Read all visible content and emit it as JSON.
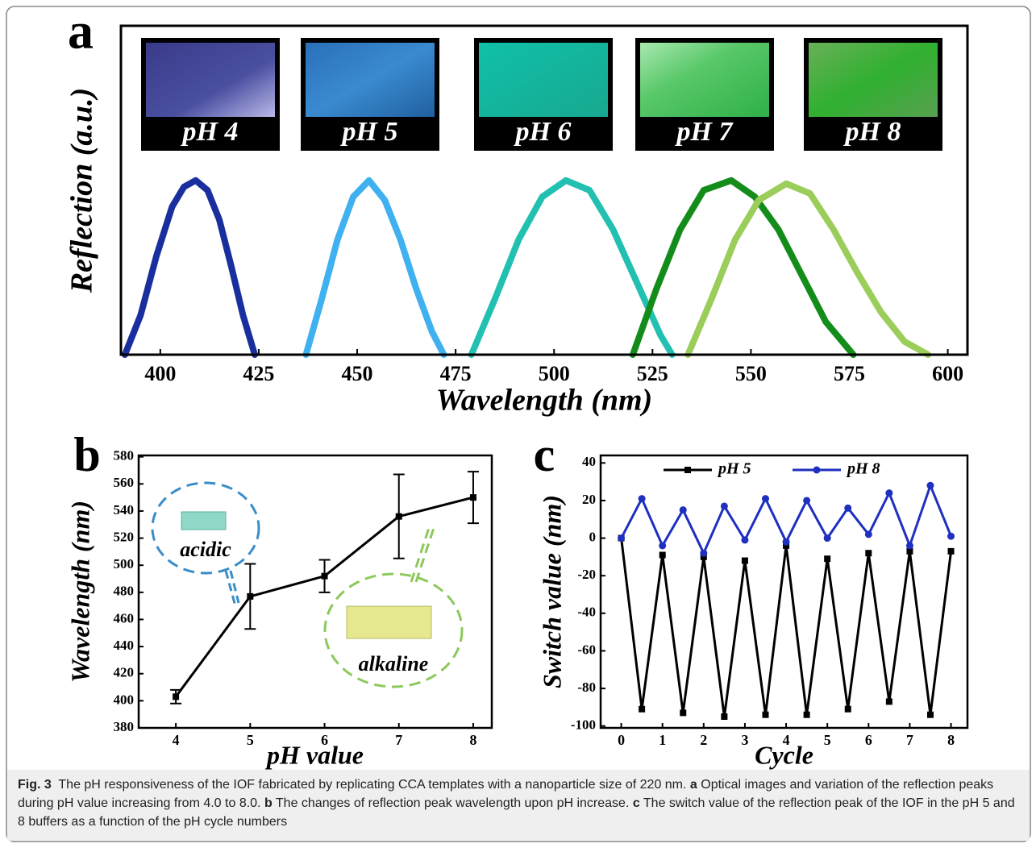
{
  "chart_data": [
    {
      "type": "line",
      "panel_label": "a",
      "xlabel": "Wavelength (nm)",
      "ylabel": "Reflection (a.u.)",
      "xlim": [
        390,
        605
      ],
      "xticks": [
        400,
        425,
        450,
        475,
        500,
        525,
        550,
        575,
        600
      ],
      "ylim": [
        0,
        1
      ],
      "images": [
        "pH 4",
        "pH 5",
        "pH 6",
        "pH 7",
        "pH 8"
      ],
      "series": [
        {
          "color": "#1a2f9e",
          "x": [
            391,
            395,
            399,
            403,
            406,
            409,
            412,
            415,
            418,
            421,
            424
          ],
          "values": [
            0,
            0.12,
            0.3,
            0.45,
            0.51,
            0.53,
            0.5,
            0.41,
            0.27,
            0.12,
            0
          ]
        },
        {
          "color": "#3fb0f0",
          "x": [
            437,
            441,
            445,
            449,
            453,
            457,
            461,
            465,
            469,
            472
          ],
          "values": [
            0,
            0.17,
            0.35,
            0.48,
            0.53,
            0.47,
            0.35,
            0.2,
            0.07,
            0
          ]
        },
        {
          "color": "#22c0b0",
          "x": [
            479,
            485,
            491,
            497,
            503,
            509,
            515,
            521,
            527,
            530
          ],
          "values": [
            0,
            0.17,
            0.35,
            0.48,
            0.53,
            0.5,
            0.38,
            0.22,
            0.06,
            0
          ]
        },
        {
          "color": "#138c1a",
          "x": [
            520,
            526,
            532,
            538,
            545,
            551,
            557,
            563,
            569,
            576
          ],
          "values": [
            0,
            0.2,
            0.38,
            0.5,
            0.53,
            0.48,
            0.38,
            0.24,
            0.1,
            0
          ]
        },
        {
          "color": "#9acd5a",
          "x": [
            534,
            540,
            546,
            552,
            559,
            565,
            571,
            577,
            583,
            589,
            595
          ],
          "values": [
            0,
            0.17,
            0.35,
            0.47,
            0.52,
            0.49,
            0.38,
            0.25,
            0.13,
            0.04,
            0
          ]
        }
      ]
    },
    {
      "type": "line",
      "panel_label": "b",
      "xlabel": "pH value",
      "ylabel": "Wavelength (nm)",
      "xlim": [
        3.5,
        8.25
      ],
      "xticks": [
        4,
        5,
        6,
        7,
        8
      ],
      "ylim": [
        380,
        581
      ],
      "yticks": [
        380,
        400,
        420,
        440,
        460,
        480,
        500,
        520,
        540,
        560,
        580
      ],
      "annotations": [
        "acidic",
        "alkaline"
      ],
      "x": [
        4,
        5,
        6,
        7,
        8
      ],
      "series": [
        {
          "color": "#000000",
          "marker": "square",
          "values": [
            403,
            477,
            492,
            536,
            550
          ],
          "errors": [
            5,
            24,
            12,
            31,
            19
          ]
        }
      ]
    },
    {
      "type": "line",
      "panel_label": "c",
      "xlabel": "Cycle",
      "ylabel": "Switch value (nm)",
      "xlim": [
        -0.5,
        8.4
      ],
      "xticks": [
        0,
        1,
        2,
        3,
        4,
        5,
        6,
        7,
        8
      ],
      "ylim": [
        -101,
        44
      ],
      "yticks": [
        -100,
        -80,
        -60,
        -40,
        -20,
        0,
        20,
        40
      ],
      "x": [
        0,
        0.5,
        1,
        1.5,
        2,
        2.5,
        3,
        3.5,
        4,
        4.5,
        5,
        5.5,
        6,
        6.5,
        7,
        7.5,
        8
      ],
      "series": [
        {
          "name": "pH 5",
          "color": "#000000",
          "marker": "square",
          "values": [
            0,
            -91,
            -9,
            -93,
            -10,
            -95,
            -12,
            -94,
            -4,
            -94,
            -11,
            -91,
            -8,
            -87,
            -7,
            -94,
            -7
          ]
        },
        {
          "name": "pH 8",
          "color": "#1f2fc0",
          "marker": "circle",
          "values": [
            0,
            21,
            -4,
            15,
            -8,
            17,
            -1,
            21,
            -2,
            20,
            0,
            16,
            2,
            24,
            -4,
            28,
            1
          ]
        }
      ]
    }
  ],
  "caption": {
    "label": "Fig. 3",
    "text": "The pH responsiveness of the IOF fabricated by replicating CCA templates with a nanoparticle size of 220 nm.",
    "parts": [
      {
        "letter": "a",
        "text": "Optical images and variation of the reflection peaks during pH value increasing from 4.0 to 8.0."
      },
      {
        "letter": "b",
        "text": "The changes of reflection peak wavelength upon pH increase."
      },
      {
        "letter": "c",
        "text": "The switch value of the reflection peak of the IOF in the pH 5 and 8 buffers as a function of the pH cycle numbers"
      }
    ]
  }
}
